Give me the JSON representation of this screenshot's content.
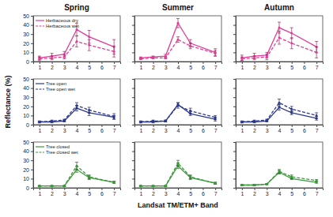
{
  "chart_data": [
    {
      "type": "line",
      "title": "Spring",
      "legend": "upper left",
      "xlim": [
        0.5,
        7.5
      ],
      "xticks": [
        1,
        2,
        3,
        4,
        5,
        6,
        7
      ],
      "ylim": [
        0,
        50
      ],
      "yticks": [
        0,
        10,
        20,
        30,
        40,
        50
      ],
      "x": [
        1,
        2,
        3,
        4,
        5,
        7
      ],
      "series": [
        {
          "name": "Herbaceous dry",
          "color": "#e23d96",
          "line_style": "solid",
          "marker": "circle",
          "values": [
            4,
            6,
            8,
            35,
            27,
            16
          ],
          "errors": [
            2,
            3,
            3,
            7,
            7,
            8
          ]
        },
        {
          "name": "Herbaceous wet",
          "color": "#e23d96",
          "line_style": "dashed",
          "marker": "circle",
          "values": [
            3,
            4,
            5,
            22,
            18,
            11
          ],
          "errors": [
            2,
            2,
            2,
            6,
            6,
            6
          ]
        }
      ]
    },
    {
      "type": "line",
      "title": "Summer",
      "tick_labels": "x",
      "xlim": [
        0.5,
        7.5
      ],
      "xticks": [
        1,
        2,
        3,
        4,
        5,
        6,
        7
      ],
      "ylim": [
        0,
        50
      ],
      "yticks": [
        0,
        10,
        20,
        30,
        40,
        50
      ],
      "x": [
        1,
        2,
        3,
        4,
        5,
        7
      ],
      "series": [
        {
          "color": "#e23d96",
          "line_style": "solid",
          "marker": "circle",
          "values": [
            4,
            5,
            6,
            42,
            20,
            10
          ],
          "errors": [
            1,
            1,
            2,
            5,
            4,
            4
          ]
        },
        {
          "color": "#e23d96",
          "line_style": "dashed",
          "marker": "circle",
          "values": [
            3,
            4,
            4,
            24,
            17,
            9
          ],
          "errors": [
            1,
            1,
            1,
            3,
            3,
            3
          ]
        }
      ]
    },
    {
      "type": "line",
      "title": "Autumn",
      "tick_labels": "x",
      "xlim": [
        0.5,
        7.5
      ],
      "xticks": [
        1,
        2,
        3,
        4,
        5,
        6,
        7
      ],
      "ylim": [
        0,
        50
      ],
      "yticks": [
        0,
        10,
        20,
        30,
        40,
        50
      ],
      "x": [
        1,
        2,
        3,
        4,
        5,
        7
      ],
      "series": [
        {
          "color": "#e23d96",
          "line_style": "solid",
          "marker": "circle",
          "values": [
            4,
            6,
            7,
            37,
            31,
            16
          ],
          "errors": [
            3,
            3,
            3,
            6,
            6,
            6
          ]
        },
        {
          "color": "#e23d96",
          "line_style": "dashed",
          "marker": "circle",
          "values": [
            3,
            4,
            5,
            26,
            20,
            10
          ],
          "errors": [
            2,
            2,
            3,
            7,
            6,
            6
          ]
        }
      ]
    },
    {
      "type": "line",
      "ylabel": "Reflectance (%)",
      "legend": "upper left",
      "xlim": [
        0.5,
        7.5
      ],
      "xticks": [
        1,
        2,
        3,
        4,
        5,
        6,
        7
      ],
      "ylim": [
        0,
        50
      ],
      "yticks": [
        0,
        10,
        20,
        30,
        40,
        50
      ],
      "x": [
        1,
        2,
        3,
        4,
        5,
        7
      ],
      "series": [
        {
          "name": "Tree open",
          "color": "#2b3990",
          "line_style": "solid",
          "marker": "circle",
          "values": [
            3,
            3,
            4,
            18,
            13,
            8
          ],
          "errors": [
            1,
            1,
            1,
            3,
            3,
            2
          ]
        },
        {
          "name": "Tree open wet",
          "color": "#2b3990",
          "line_style": "dashed",
          "marker": "circle",
          "values": [
            3,
            4,
            5,
            21,
            16,
            9
          ],
          "errors": [
            1,
            1,
            1,
            3,
            3,
            3
          ]
        }
      ]
    },
    {
      "type": "line",
      "tick_labels": "x",
      "xlim": [
        0.5,
        7.5
      ],
      "xticks": [
        1,
        2,
        3,
        4,
        5,
        6,
        7
      ],
      "ylim": [
        0,
        50
      ],
      "yticks": [
        0,
        10,
        20,
        30,
        40,
        50
      ],
      "x": [
        1,
        2,
        3,
        4,
        5,
        7
      ],
      "series": [
        {
          "color": "#2b3990",
          "line_style": "solid",
          "marker": "circle",
          "values": [
            3,
            3,
            4,
            22,
            12,
            6
          ],
          "errors": [
            1,
            1,
            1,
            2,
            2,
            2
          ]
        },
        {
          "color": "#2b3990",
          "line_style": "dashed",
          "marker": "circle",
          "values": [
            3,
            4,
            4,
            21,
            15,
            8
          ],
          "errors": [
            1,
            1,
            1,
            3,
            3,
            2
          ]
        }
      ]
    },
    {
      "type": "line",
      "tick_labels": "x",
      "xlim": [
        0.5,
        7.5
      ],
      "xticks": [
        1,
        2,
        3,
        4,
        5,
        6,
        7
      ],
      "ylim": [
        0,
        50
      ],
      "yticks": [
        0,
        10,
        20,
        30,
        40,
        50
      ],
      "x": [
        1,
        2,
        3,
        4,
        5,
        7
      ],
      "series": [
        {
          "color": "#2b3990",
          "line_style": "solid",
          "marker": "circle",
          "values": [
            3,
            3,
            4,
            19,
            13,
            7
          ],
          "errors": [
            1,
            1,
            1,
            3,
            2,
            2
          ]
        },
        {
          "color": "#2b3990",
          "line_style": "dashed",
          "marker": "circle",
          "values": [
            3,
            4,
            5,
            24,
            17,
            10
          ],
          "errors": [
            1,
            1,
            1,
            4,
            3,
            3
          ]
        }
      ]
    },
    {
      "type": "line",
      "legend": "upper left",
      "xlim": [
        0.5,
        7.5
      ],
      "xticks": [
        1,
        2,
        3,
        4,
        5,
        6,
        7
      ],
      "ylim": [
        0,
        50
      ],
      "yticks": [
        0,
        10,
        20,
        30,
        40,
        50
      ],
      "x": [
        1,
        2,
        3,
        4,
        5,
        7
      ],
      "series": [
        {
          "name": "Tree closed",
          "color": "#3a9a3a",
          "line_style": "solid",
          "marker": "circle",
          "values": [
            2,
            2,
            2,
            20,
            11,
            6
          ],
          "errors": [
            0.5,
            0.5,
            0.5,
            3,
            2,
            1
          ]
        },
        {
          "name": "Tree closed wet",
          "color": "#3a9a3a",
          "line_style": "dashed",
          "marker": "circle",
          "values": [
            2,
            2,
            2,
            24,
            12,
            6
          ],
          "errors": [
            0.5,
            0.5,
            0.5,
            4,
            2,
            1
          ]
        }
      ]
    },
    {
      "type": "line",
      "xlabel": "Landsat TM/ETM+ Band",
      "tick_labels": "x",
      "xlim": [
        0.5,
        7.5
      ],
      "xticks": [
        1,
        2,
        3,
        4,
        5,
        6,
        7
      ],
      "ylim": [
        0,
        50
      ],
      "yticks": [
        0,
        10,
        20,
        30,
        40,
        50
      ],
      "x": [
        1,
        2,
        3,
        4,
        5,
        7
      ],
      "series": [
        {
          "color": "#3a9a3a",
          "line_style": "solid",
          "marker": "circle",
          "values": [
            2,
            2,
            2,
            24,
            11,
            5
          ],
          "errors": [
            0.5,
            0.5,
            0.5,
            3,
            2,
            1
          ]
        },
        {
          "color": "#3a9a3a",
          "line_style": "dashed",
          "marker": "circle",
          "values": [
            2,
            2,
            2,
            27,
            12,
            5
          ],
          "errors": [
            0.5,
            0.5,
            0.5,
            3,
            2,
            1
          ]
        }
      ]
    },
    {
      "type": "line",
      "tick_labels": "x",
      "xlim": [
        0.5,
        7.5
      ],
      "xticks": [
        1,
        2,
        3,
        4,
        5,
        6,
        7
      ],
      "ylim": [
        0,
        50
      ],
      "yticks": [
        0,
        10,
        20,
        30,
        40,
        50
      ],
      "x": [
        1,
        2,
        3,
        4,
        5,
        7
      ],
      "series": [
        {
          "color": "#3a9a3a",
          "line_style": "solid",
          "marker": "circle",
          "values": [
            3,
            3,
            4,
            17,
            10,
            6
          ],
          "errors": [
            0.5,
            0.5,
            0.5,
            2,
            1,
            1
          ]
        },
        {
          "color": "#3a9a3a",
          "line_style": "dashed",
          "marker": "circle",
          "values": [
            3,
            3,
            4,
            18,
            12,
            8
          ],
          "errors": [
            0.5,
            0.5,
            0.5,
            2,
            2,
            1
          ]
        }
      ]
    }
  ]
}
